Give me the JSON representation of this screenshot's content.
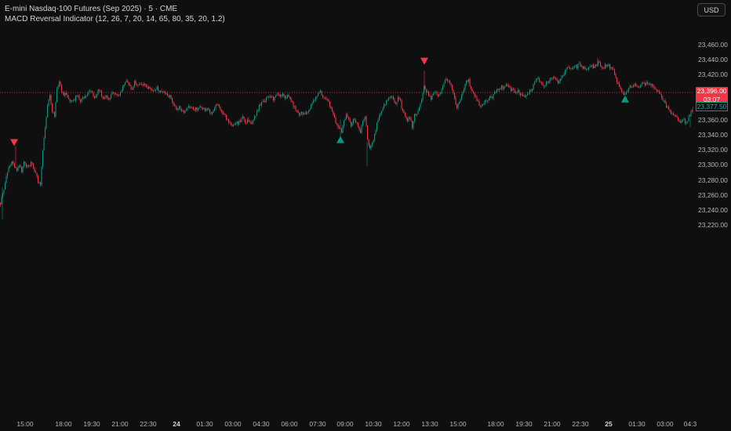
{
  "legend": {
    "title": "E-mini Nasdaq-100 Futures (Sep 2025) · 5 · CME",
    "indicator": "MACD Reversal Indicator (12, 26, 7, 20, 14, 65, 80, 35, 20, 1.2)"
  },
  "currency": "USD",
  "price_ticks": [
    "23,460.00",
    "23,440.00",
    "23,420.00",
    "23,400.00",
    "23,380.00",
    "23,360.00",
    "23,340.00",
    "23,320.00",
    "23,300.00",
    "23,280.00",
    "23,260.00",
    "23,240.00",
    "23,220.00"
  ],
  "time_ticks": [
    {
      "label": "15:00",
      "bold": false
    },
    {
      "label": "18:00",
      "bold": false
    },
    {
      "label": "19:30",
      "bold": false
    },
    {
      "label": "21:00",
      "bold": false
    },
    {
      "label": "22:30",
      "bold": false
    },
    {
      "label": "24",
      "bold": true
    },
    {
      "label": "01:30",
      "bold": false
    },
    {
      "label": "03:00",
      "bold": false
    },
    {
      "label": "04:30",
      "bold": false
    },
    {
      "label": "06:00",
      "bold": false
    },
    {
      "label": "07:30",
      "bold": false
    },
    {
      "label": "09:00",
      "bold": false
    },
    {
      "label": "10:30",
      "bold": false
    },
    {
      "label": "12:00",
      "bold": false
    },
    {
      "label": "13:30",
      "bold": false
    },
    {
      "label": "15:00",
      "bold": false
    },
    {
      "label": "18:00",
      "bold": false
    },
    {
      "label": "19:30",
      "bold": false
    },
    {
      "label": "21:00",
      "bold": false
    },
    {
      "label": "22:30",
      "bold": false
    },
    {
      "label": "25",
      "bold": true
    },
    {
      "label": "01:30",
      "bold": false
    },
    {
      "label": "03:00",
      "bold": false
    },
    {
      "label": "04:3",
      "bold": false
    }
  ],
  "last_price": {
    "value": "23,396.00",
    "countdown": "03:07"
  },
  "current_price": {
    "value": "23,377.50"
  },
  "colors": {
    "up": "#089981",
    "down": "#f23645",
    "bg": "#0f0f0f",
    "pricedot": "#f23645"
  },
  "chart_data": {
    "type": "candlestick",
    "ylim": [
      23215,
      23475
    ],
    "price_levels": [
      23460,
      23440,
      23420,
      23400,
      23380,
      23360,
      23340,
      23320,
      23300,
      23280,
      23260,
      23240,
      23220
    ],
    "last_price_level": 23396,
    "close_path": [
      [
        0,
        23250
      ],
      [
        3,
        23262
      ],
      [
        6,
        23275
      ],
      [
        9,
        23290
      ],
      [
        12,
        23300
      ],
      [
        15,
        23305
      ],
      [
        18,
        23296
      ],
      [
        21,
        23292
      ],
      [
        24,
        23301
      ],
      [
        27,
        23293
      ],
      [
        30,
        23302
      ],
      [
        33,
        23298
      ],
      [
        36,
        23296
      ],
      [
        39,
        23302
      ],
      [
        42,
        23296
      ],
      [
        45,
        23288
      ],
      [
        48,
        23278
      ],
      [
        51,
        23275
      ],
      [
        54,
        23320
      ],
      [
        57,
        23350
      ],
      [
        60,
        23380
      ],
      [
        63,
        23395
      ],
      [
        66,
        23370
      ],
      [
        69,
        23365
      ],
      [
        72,
        23402
      ],
      [
        75,
        23410
      ],
      [
        78,
        23398
      ],
      [
        81,
        23392
      ],
      [
        84,
        23395
      ],
      [
        87,
        23388
      ],
      [
        90,
        23384
      ],
      [
        93,
        23385
      ],
      [
        96,
        23390
      ],
      [
        99,
        23392
      ],
      [
        102,
        23386
      ],
      [
        105,
        23388
      ],
      [
        108,
        23390
      ],
      [
        111,
        23393
      ],
      [
        114,
        23398
      ],
      [
        117,
        23394
      ],
      [
        120,
        23390
      ],
      [
        123,
        23396
      ],
      [
        126,
        23400
      ],
      [
        129,
        23392
      ],
      [
        132,
        23386
      ],
      [
        135,
        23390
      ],
      [
        138,
        23385
      ],
      [
        141,
        23392
      ],
      [
        144,
        23398
      ],
      [
        147,
        23392
      ],
      [
        150,
        23390
      ],
      [
        153,
        23396
      ],
      [
        156,
        23402
      ],
      [
        159,
        23410
      ],
      [
        162,
        23412
      ],
      [
        165,
        23405
      ],
      [
        168,
        23400
      ],
      [
        171,
        23410
      ],
      [
        174,
        23406
      ],
      [
        177,
        23408
      ],
      [
        180,
        23404
      ],
      [
        183,
        23406
      ],
      [
        186,
        23402
      ],
      [
        189,
        23405
      ],
      [
        192,
        23400
      ],
      [
        195,
        23398
      ],
      [
        198,
        23402
      ],
      [
        201,
        23400
      ],
      [
        204,
        23396
      ],
      [
        207,
        23394
      ],
      [
        210,
        23396
      ],
      [
        213,
        23390
      ],
      [
        216,
        23390
      ],
      [
        219,
        23385
      ],
      [
        222,
        23380
      ],
      [
        225,
        23373
      ],
      [
        228,
        23376
      ],
      [
        231,
        23371
      ],
      [
        234,
        23370
      ],
      [
        237,
        23373
      ],
      [
        240,
        23377
      ],
      [
        243,
        23378
      ],
      [
        246,
        23372
      ],
      [
        249,
        23376
      ],
      [
        252,
        23374
      ],
      [
        255,
        23375
      ],
      [
        258,
        23376
      ],
      [
        261,
        23374
      ],
      [
        264,
        23373
      ],
      [
        267,
        23371
      ],
      [
        270,
        23370
      ],
      [
        273,
        23376
      ],
      [
        276,
        23380
      ],
      [
        279,
        23378
      ],
      [
        282,
        23372
      ],
      [
        285,
        23366
      ],
      [
        288,
        23362
      ],
      [
        291,
        23356
      ],
      [
        294,
        23353
      ],
      [
        297,
        23355
      ],
      [
        300,
        23357
      ],
      [
        303,
        23354
      ],
      [
        306,
        23358
      ],
      [
        309,
        23362
      ],
      [
        312,
        23356
      ],
      [
        315,
        23358
      ],
      [
        318,
        23355
      ],
      [
        321,
        23354
      ],
      [
        324,
        23364
      ],
      [
        327,
        23370
      ],
      [
        330,
        23378
      ],
      [
        333,
        23382
      ],
      [
        336,
        23384
      ],
      [
        339,
        23388
      ],
      [
        342,
        23392
      ],
      [
        345,
        23390
      ],
      [
        348,
        23387
      ],
      [
        351,
        23392
      ],
      [
        354,
        23394
      ],
      [
        357,
        23392
      ],
      [
        360,
        23395
      ],
      [
        363,
        23390
      ],
      [
        366,
        23393
      ],
      [
        369,
        23388
      ],
      [
        372,
        23382
      ],
      [
        375,
        23376
      ],
      [
        378,
        23370
      ],
      [
        381,
        23368
      ],
      [
        384,
        23372
      ],
      [
        387,
        23366
      ],
      [
        390,
        23370
      ],
      [
        393,
        23374
      ],
      [
        396,
        23378
      ],
      [
        399,
        23384
      ],
      [
        402,
        23390
      ],
      [
        405,
        23394
      ],
      [
        408,
        23396
      ],
      [
        411,
        23392
      ],
      [
        414,
        23390
      ],
      [
        417,
        23385
      ],
      [
        420,
        23378
      ],
      [
        423,
        23370
      ],
      [
        426,
        23362
      ],
      [
        429,
        23353
      ],
      [
        432,
        23350
      ],
      [
        435,
        23345
      ],
      [
        438,
        23358
      ],
      [
        441,
        23365
      ],
      [
        444,
        23360
      ],
      [
        447,
        23350
      ],
      [
        450,
        23360
      ],
      [
        453,
        23355
      ],
      [
        456,
        23352
      ],
      [
        459,
        23344
      ],
      [
        462,
        23358
      ],
      [
        465,
        23365
      ],
      [
        468,
        23335
      ],
      [
        471,
        23320
      ],
      [
        474,
        23330
      ],
      [
        477,
        23340
      ],
      [
        480,
        23355
      ],
      [
        483,
        23365
      ],
      [
        486,
        23370
      ],
      [
        489,
        23378
      ],
      [
        492,
        23385
      ],
      [
        495,
        23389
      ],
      [
        498,
        23392
      ],
      [
        501,
        23386
      ],
      [
        504,
        23382
      ],
      [
        507,
        23388
      ],
      [
        510,
        23384
      ],
      [
        513,
        23370
      ],
      [
        516,
        23365
      ],
      [
        519,
        23360
      ],
      [
        522,
        23362
      ],
      [
        525,
        23350
      ],
      [
        528,
        23370
      ],
      [
        531,
        23365
      ],
      [
        534,
        23375
      ],
      [
        537,
        23385
      ],
      [
        540,
        23405
      ],
      [
        543,
        23398
      ],
      [
        546,
        23393
      ],
      [
        549,
        23388
      ],
      [
        552,
        23392
      ],
      [
        555,
        23396
      ],
      [
        558,
        23390
      ],
      [
        561,
        23395
      ],
      [
        564,
        23402
      ],
      [
        567,
        23412
      ],
      [
        570,
        23414
      ],
      [
        573,
        23410
      ],
      [
        576,
        23400
      ],
      [
        579,
        23388
      ],
      [
        582,
        23376
      ],
      [
        585,
        23384
      ],
      [
        588,
        23392
      ],
      [
        591,
        23400
      ],
      [
        594,
        23410
      ],
      [
        597,
        23412
      ],
      [
        600,
        23400
      ],
      [
        603,
        23394
      ],
      [
        606,
        23390
      ],
      [
        609,
        23384
      ],
      [
        612,
        23376
      ],
      [
        615,
        23380
      ],
      [
        618,
        23386
      ],
      [
        621,
        23388
      ],
      [
        624,
        23392
      ],
      [
        627,
        23390
      ],
      [
        630,
        23396
      ],
      [
        633,
        23398
      ],
      [
        636,
        23400
      ],
      [
        639,
        23404
      ],
      [
        642,
        23402
      ],
      [
        645,
        23406
      ],
      [
        648,
        23403
      ],
      [
        651,
        23400
      ],
      [
        654,
        23398
      ],
      [
        657,
        23395
      ],
      [
        660,
        23398
      ],
      [
        663,
        23394
      ],
      [
        666,
        23391
      ],
      [
        669,
        23392
      ],
      [
        672,
        23396
      ],
      [
        675,
        23398
      ],
      [
        678,
        23402
      ],
      [
        681,
        23410
      ],
      [
        684,
        23416
      ],
      [
        687,
        23412
      ],
      [
        690,
        23408
      ],
      [
        693,
        23405
      ],
      [
        696,
        23408
      ],
      [
        699,
        23410
      ],
      [
        702,
        23414
      ],
      [
        705,
        23415
      ],
      [
        708,
        23412
      ],
      [
        711,
        23410
      ],
      [
        714,
        23416
      ],
      [
        717,
        23420
      ],
      [
        720,
        23424
      ],
      [
        723,
        23428
      ],
      [
        726,
        23430
      ],
      [
        729,
        23428
      ],
      [
        732,
        23431
      ],
      [
        735,
        23430
      ],
      [
        738,
        23434
      ],
      [
        741,
        23430
      ],
      [
        744,
        23428
      ],
      [
        747,
        23427
      ],
      [
        750,
        23430
      ],
      [
        753,
        23432
      ],
      [
        756,
        23430
      ],
      [
        759,
        23434
      ],
      [
        762,
        23435
      ],
      [
        765,
        23432
      ],
      [
        768,
        23428
      ],
      [
        771,
        23432
      ],
      [
        774,
        23434
      ],
      [
        777,
        23430
      ],
      [
        780,
        23430
      ],
      [
        783,
        23420
      ],
      [
        786,
        23412
      ],
      [
        789,
        23404
      ],
      [
        792,
        23398
      ],
      [
        795,
        23392
      ],
      [
        798,
        23398
      ],
      [
        801,
        23402
      ],
      [
        804,
        23404
      ],
      [
        807,
        23406
      ],
      [
        810,
        23404
      ],
      [
        813,
        23404
      ],
      [
        816,
        23406
      ],
      [
        819,
        23408
      ],
      [
        822,
        23408
      ],
      [
        825,
        23410
      ],
      [
        828,
        23408
      ],
      [
        831,
        23406
      ],
      [
        834,
        23404
      ],
      [
        837,
        23400
      ],
      [
        840,
        23394
      ],
      [
        843,
        23390
      ],
      [
        846,
        23384
      ],
      [
        849,
        23378
      ],
      [
        852,
        23372
      ],
      [
        855,
        23368
      ],
      [
        858,
        23366
      ],
      [
        861,
        23364
      ],
      [
        864,
        23360
      ],
      [
        867,
        23358
      ],
      [
        870,
        23362
      ],
      [
        873,
        23356
      ],
      [
        876,
        23358
      ],
      [
        879,
        23366
      ],
      [
        882,
        23372
      ],
      [
        884,
        23377.5
      ]
    ],
    "signals": [
      {
        "type": "sell",
        "bar": 18,
        "price": 23329
      },
      {
        "type": "buy",
        "bar": 434,
        "price": 23333
      },
      {
        "type": "sell",
        "bar": 541,
        "price": 23437
      },
      {
        "type": "buy",
        "bar": 797,
        "price": 23387
      }
    ]
  }
}
